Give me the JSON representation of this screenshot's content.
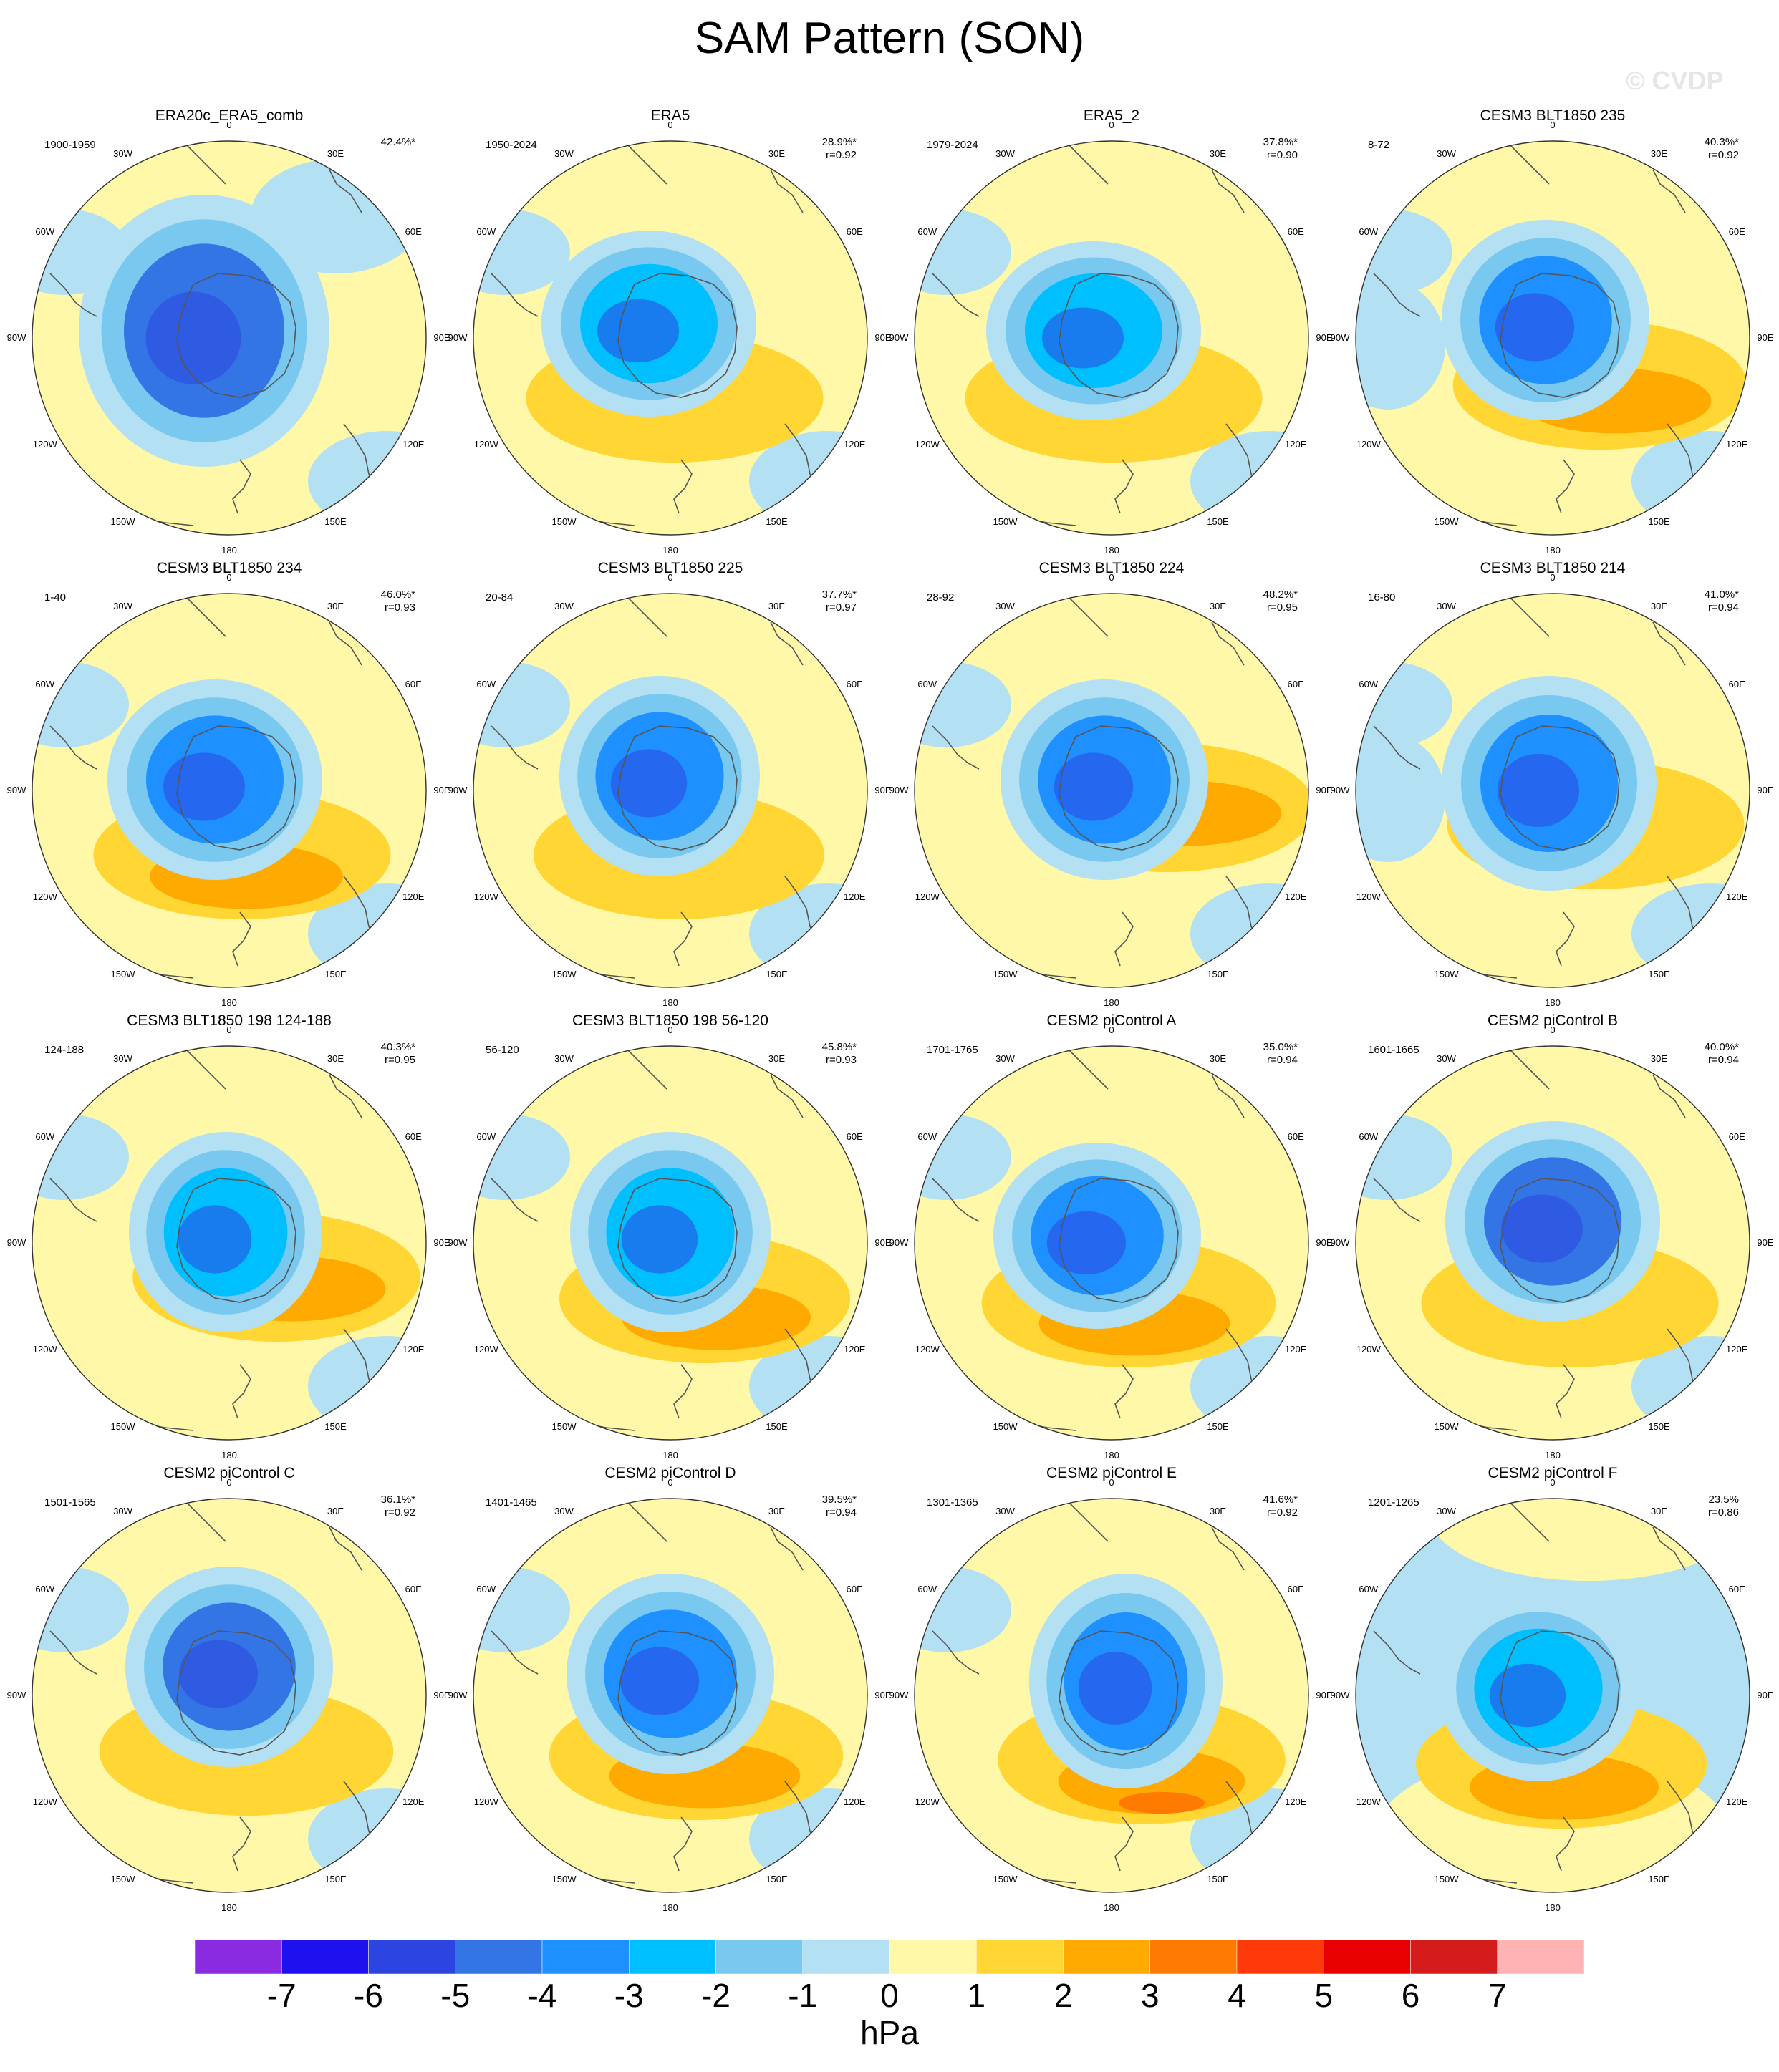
{
  "title": "SAM Pattern (SON)",
  "watermark": "© CVDP",
  "lon_labels": [
    "0",
    "30E",
    "60E",
    "90E",
    "120E",
    "150E",
    "180",
    "150W",
    "120W",
    "90W",
    "60W",
    "30W"
  ],
  "panels": [
    {
      "title": "ERA20c_ERA5_comb",
      "period": "1900-1959",
      "pct": "42.4%*",
      "corr": ""
    },
    {
      "title": "ERA5",
      "period": "1950-2024",
      "pct": "28.9%*",
      "corr": "r=0.92"
    },
    {
      "title": "ERA5_2",
      "period": "1979-2024",
      "pct": "37.8%*",
      "corr": "r=0.90"
    },
    {
      "title": "CESM3 BLT1850 235",
      "period": "8-72",
      "pct": "40.3%*",
      "corr": "r=0.92"
    },
    {
      "title": "CESM3 BLT1850 234",
      "period": "1-40",
      "pct": "46.0%*",
      "corr": "r=0.93"
    },
    {
      "title": "CESM3 BLT1850 225",
      "period": "20-84",
      "pct": "37.7%*",
      "corr": "r=0.97"
    },
    {
      "title": "CESM3 BLT1850 224",
      "period": "28-92",
      "pct": "48.2%*",
      "corr": "r=0.95"
    },
    {
      "title": "CESM3 BLT1850 214",
      "period": "16-80",
      "pct": "41.0%*",
      "corr": "r=0.94"
    },
    {
      "title": "CESM3 BLT1850 198 124-188",
      "period": "124-188",
      "pct": "40.3%*",
      "corr": "r=0.95"
    },
    {
      "title": "CESM3 BLT1850 198 56-120",
      "period": "56-120",
      "pct": "45.8%*",
      "corr": "r=0.93"
    },
    {
      "title": "CESM2 piControl A",
      "period": "1701-1765",
      "pct": "35.0%*",
      "corr": "r=0.94"
    },
    {
      "title": "CESM2 piControl B",
      "period": "1601-1665",
      "pct": "40.0%*",
      "corr": "r=0.94"
    },
    {
      "title": "CESM2 piControl C",
      "period": "1501-1565",
      "pct": "36.1%*",
      "corr": "r=0.92"
    },
    {
      "title": "CESM2 piControl D",
      "period": "1401-1465",
      "pct": "39.5%*",
      "corr": "r=0.94"
    },
    {
      "title": "CESM2 piControl E",
      "period": "1301-1365",
      "pct": "41.6%*",
      "corr": "r=0.92"
    },
    {
      "title": "CESM2 piControl F",
      "period": "1201-1265",
      "pct": "23.5%",
      "corr": "r=0.86"
    }
  ],
  "colorbar": {
    "ticks": [
      "-7",
      "-6",
      "-5",
      "-4",
      "-3",
      "-2",
      "-1",
      "0",
      "1",
      "2",
      "3",
      "4",
      "5",
      "6",
      "7"
    ],
    "colors": [
      "#8a2be2",
      "#1f10f0",
      "#2c45e0",
      "#3475e6",
      "#1e90ff",
      "#00bfff",
      "#78c8f0",
      "#b3e0f2",
      "#fff8a8",
      "#ffd633",
      "#ffaa00",
      "#ff7a00",
      "#ff3a0a",
      "#e80000",
      "#d41c1c",
      "#ffb3b3"
    ],
    "units": "hPa"
  },
  "colors": {
    "low1": "#2c45e0",
    "low2": "#3475e6",
    "low3": "#1e90ff",
    "low4": "#00bfff",
    "low5": "#78c8f0",
    "low6": "#b3e0f2",
    "zero": "#fff8a8",
    "high1": "#ffd633",
    "high2": "#ffaa00",
    "high3": "#ff7a00",
    "coast": "#555555"
  }
}
